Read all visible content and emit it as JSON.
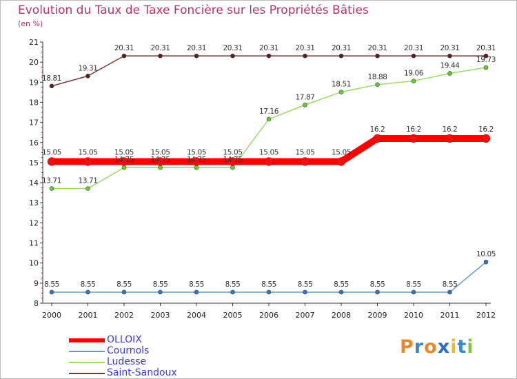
{
  "title": "Evolution du Taux de Taxe Foncière sur les Propriétés Bâties",
  "subtitle": "(en %)",
  "logo_text": "Proxiti",
  "chart_data": {
    "type": "line",
    "title": "Evolution du Taux de Taxe Foncière sur les Propriétés Bâties",
    "ylabel": "(en %)",
    "xlabel": "",
    "ylim": [
      8,
      21
    ],
    "yticks": [
      "8",
      "9",
      "10",
      "11",
      "12",
      "13",
      "14",
      "15",
      "16",
      "17",
      "18",
      "19",
      "20",
      "21"
    ],
    "categories": [
      "2000",
      "2001",
      "2002",
      "2003",
      "2004",
      "2005",
      "2006",
      "2007",
      "2008",
      "2009",
      "2010",
      "2011",
      "2012"
    ],
    "series": [
      {
        "name": "OLLOIX",
        "color": "#ff0000",
        "point_color": "#ee1111",
        "values": [
          15.05,
          15.05,
          15.05,
          15.05,
          15.05,
          15.05,
          15.05,
          15.05,
          15.05,
          16.2,
          16.2,
          16.2,
          16.2
        ],
        "labels": [
          "15.05",
          "15.05",
          "15.05",
          "15.05",
          "15.05",
          "15.05",
          "15.05",
          "15.05",
          "15.05",
          "16.2",
          "16.2",
          "16.2",
          "16.2"
        ]
      },
      {
        "name": "Cournols",
        "color": "#6699cc",
        "point_color": "#3377bb",
        "values": [
          8.55,
          8.55,
          8.55,
          8.55,
          8.55,
          8.55,
          8.55,
          8.55,
          8.55,
          8.55,
          8.55,
          8.55,
          10.05
        ],
        "labels": [
          "8.55",
          "8.55",
          "8.55",
          "8.55",
          "8.55",
          "8.55",
          "8.55",
          "8.55",
          "8.55",
          "8.55",
          "8.55",
          "8.55",
          "10.05"
        ]
      },
      {
        "name": "Ludesse",
        "color": "#99dd66",
        "point_color": "#66cc33",
        "values": [
          13.71,
          13.71,
          14.75,
          14.75,
          14.75,
          14.75,
          17.16,
          17.87,
          18.51,
          18.88,
          19.06,
          19.44,
          19.73
        ],
        "labels": [
          "13.71",
          "13.71",
          "14.75",
          "14.75",
          "14.75",
          "14.75",
          "17.16",
          "17.87",
          "18.51",
          "18.88",
          "19.06",
          "19.44",
          "19.73"
        ]
      },
      {
        "name": "Saint-Sandoux",
        "color": "#7a3636",
        "point_color": "#5a1f1f",
        "values": [
          18.81,
          19.31,
          20.31,
          20.31,
          20.31,
          20.31,
          20.31,
          20.31,
          20.31,
          20.31,
          20.31,
          20.31,
          20.31
        ],
        "labels": [
          "18.81",
          "19.31",
          "20.31",
          "20.31",
          "20.31",
          "20.31",
          "20.31",
          "20.31",
          "20.31",
          "20.31",
          "20.31",
          "20.31",
          "20.31"
        ]
      }
    ],
    "legend": "bottom-left",
    "grid": false
  }
}
